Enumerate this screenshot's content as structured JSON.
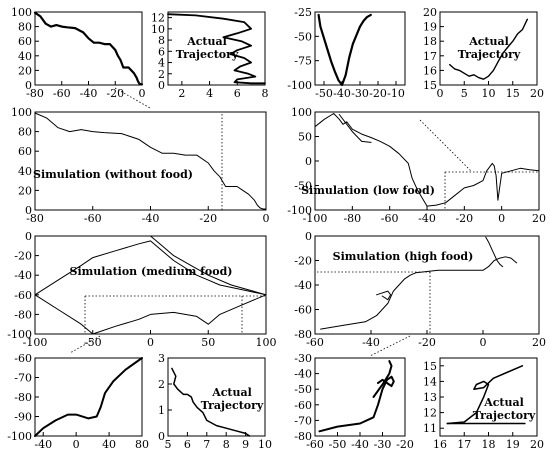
{
  "chart_data": [
    {
      "id": "p1",
      "type": "line",
      "xlim": [
        -80,
        0
      ],
      "ylim": [
        0,
        100
      ],
      "xticks": [
        -80,
        -60,
        -40,
        -20,
        0
      ],
      "yticks": [
        0,
        20,
        40,
        60,
        80,
        100
      ],
      "series": [
        {
          "x": [
            -80,
            -76,
            -72,
            -68,
            -64,
            -60,
            -56,
            -50,
            -44,
            -40,
            -36,
            -32,
            -28,
            -24,
            -20,
            -18,
            -16,
            -14,
            -10,
            -8,
            -6,
            -4,
            -3,
            -2,
            -1,
            0
          ],
          "y": [
            99,
            94,
            84,
            80,
            82,
            80,
            79,
            78,
            72,
            64,
            58,
            58,
            56,
            56,
            48,
            40,
            34,
            24,
            24,
            20,
            16,
            10,
            5,
            2,
            1,
            1
          ]
        }
      ]
    },
    {
      "id": "p2",
      "type": "line",
      "xlim": [
        1,
        8
      ],
      "ylim": [
        0,
        13
      ],
      "xticks": [
        2,
        4,
        6,
        8
      ],
      "yticks": [
        0,
        2,
        4,
        6,
        8,
        10,
        12
      ],
      "series": [
        {
          "x": [
            1.0,
            3.0,
            5.0,
            6.5,
            7.0,
            6.0,
            5.0,
            6.3,
            7.0,
            6.0,
            5.5,
            6.5,
            7.0,
            6.2,
            5.8,
            6.8,
            7.3,
            6.0,
            5.8,
            7.0,
            8.0
          ],
          "y": [
            12.6,
            12.4,
            11.8,
            11.2,
            10.0,
            9.2,
            8.5,
            7.8,
            7.0,
            6.2,
            5.5,
            4.8,
            4.0,
            3.3,
            2.6,
            2.0,
            1.5,
            1.0,
            0.5,
            0.3,
            0.3
          ]
        }
      ]
    },
    {
      "id": "p3",
      "type": "line",
      "xlim": [
        -55,
        -5
      ],
      "ylim": [
        -100,
        -25
      ],
      "xticks": [
        -50,
        -40,
        -30,
        -20,
        -10
      ],
      "yticks": [
        -100,
        -75,
        -50,
        -25
      ],
      "series": [
        {
          "x": [
            -53,
            -52,
            -50,
            -48,
            -46,
            -44,
            -42,
            -40,
            -38,
            -36,
            -34,
            -30,
            -28,
            -26,
            -24
          ],
          "y": [
            -28,
            -40,
            -52,
            -64,
            -76,
            -86,
            -95,
            -100,
            -90,
            -72,
            -58,
            -40,
            -34,
            -30,
            -28
          ]
        }
      ]
    },
    {
      "id": "p4",
      "type": "line",
      "xlim": [
        0,
        20
      ],
      "ylim": [
        15,
        20
      ],
      "xticks": [
        0,
        5,
        10,
        15,
        20
      ],
      "yticks": [
        15,
        16,
        17,
        18,
        19,
        20
      ],
      "series": [
        {
          "x": [
            2,
            3,
            4,
            5,
            6,
            7,
            8,
            9,
            10,
            11,
            12,
            13,
            14,
            15,
            16,
            17,
            18
          ],
          "y": [
            16.4,
            16.1,
            16.0,
            15.8,
            15.6,
            15.7,
            15.5,
            15.4,
            15.6,
            16.0,
            16.6,
            17.2,
            17.6,
            18.0,
            18.5,
            18.8,
            19.5
          ]
        }
      ]
    },
    {
      "id": "p5",
      "type": "line",
      "xlim": [
        -80,
        0
      ],
      "ylim": [
        0,
        100
      ],
      "xticks": [
        -80,
        -60,
        -40,
        -20,
        0
      ],
      "yticks": [
        0,
        20,
        40,
        60,
        80,
        100
      ],
      "series": [
        {
          "x": [
            -80,
            -76,
            -72,
            -68,
            -64,
            -60,
            -56,
            -50,
            -44,
            -40,
            -36,
            -32,
            -28,
            -24,
            -20,
            -18,
            -16,
            -14,
            -10,
            -8,
            -6,
            -4,
            -3,
            -2,
            -1,
            0
          ],
          "y": [
            99,
            94,
            84,
            80,
            82,
            80,
            79,
            78,
            72,
            64,
            58,
            58,
            56,
            56,
            48,
            40,
            34,
            24,
            24,
            20,
            16,
            10,
            5,
            2,
            1,
            1
          ]
        }
      ]
    },
    {
      "id": "p6",
      "type": "line",
      "xlim": [
        -100,
        20
      ],
      "ylim": [
        -100,
        100
      ],
      "xticks": [
        -100,
        -80,
        -60,
        -40,
        -20,
        0,
        20
      ],
      "yticks": [
        -100,
        -50,
        0,
        50,
        100
      ],
      "series": [
        {
          "x": [
            -100,
            -95,
            -90,
            -87,
            -85,
            -83,
            -80,
            -75,
            -70,
            -65,
            -60,
            -55,
            -50,
            -48,
            -45,
            -40,
            -35,
            -30,
            -25,
            -20,
            -15,
            -10,
            -8,
            -5,
            -4,
            -3,
            -2,
            0,
            5,
            10,
            15,
            20
          ],
          "y": [
            70,
            85,
            97,
            85,
            75,
            80,
            65,
            55,
            48,
            40,
            30,
            15,
            -5,
            -35,
            -60,
            -92,
            -90,
            -85,
            -70,
            -55,
            -50,
            -40,
            -20,
            -5,
            -10,
            -30,
            -80,
            -25,
            -20,
            -15,
            -18,
            -20
          ]
        },
        {
          "x": [
            -87,
            -80,
            -75,
            -70
          ],
          "y": [
            95,
            60,
            40,
            38
          ]
        }
      ]
    },
    {
      "id": "p7",
      "type": "line",
      "xlim": [
        -100,
        100
      ],
      "ylim": [
        -100,
        0
      ],
      "xticks": [
        -100,
        -50,
        0,
        50,
        100
      ],
      "yticks": [
        -100,
        -80,
        -60,
        -40,
        -20,
        0
      ],
      "series": [
        {
          "x": [
            -100,
            -80,
            -60,
            -50,
            -30,
            -10,
            0,
            20,
            40,
            50,
            60,
            80,
            100
          ],
          "y": [
            -60,
            -45,
            -30,
            -22,
            -15,
            -8,
            -5,
            -25,
            -40,
            -45,
            -50,
            -55,
            -60
          ]
        },
        {
          "x": [
            -100,
            -80,
            -60,
            -50,
            -30,
            -10,
            0,
            20,
            40,
            50,
            60,
            80,
            100
          ],
          "y": [
            -60,
            -75,
            -90,
            -100,
            -92,
            -85,
            -80,
            -78,
            -82,
            -90,
            -80,
            -70,
            -60
          ]
        },
        {
          "x": [
            0,
            10,
            20,
            35,
            50,
            70,
            100
          ],
          "y": [
            0,
            -10,
            -20,
            -30,
            -40,
            -50,
            -60
          ]
        }
      ]
    },
    {
      "id": "p8",
      "type": "line",
      "xlim": [
        -60,
        20
      ],
      "ylim": [
        -80,
        0
      ],
      "xticks": [
        -60,
        -40,
        -20,
        0,
        20
      ],
      "yticks": [
        -80,
        -60,
        -40,
        -20,
        0
      ],
      "series": [
        {
          "x": [
            -58,
            -50,
            -42,
            -38,
            -36,
            -34,
            -33,
            -32,
            -30,
            -28,
            -26,
            -24,
            -20,
            -16,
            -12,
            -8,
            -4,
            0,
            2,
            4,
            6,
            8,
            10,
            12
          ],
          "y": [
            -76,
            -73,
            -70,
            -65,
            -60,
            -55,
            -50,
            -45,
            -40,
            -35,
            -32,
            -30,
            -29,
            -28,
            -28,
            -28,
            -28,
            -28,
            -25,
            -20,
            -18,
            -17,
            -18,
            -22
          ]
        },
        {
          "x": [
            -38,
            -34,
            -33,
            -34,
            -36
          ],
          "y": [
            -48,
            -45,
            -48,
            -52,
            -49
          ]
        },
        {
          "x": [
            1,
            2,
            3,
            4,
            5,
            6,
            7
          ],
          "y": [
            -1,
            -5,
            -10,
            -15,
            -20,
            -23,
            -25
          ]
        }
      ]
    },
    {
      "id": "p9",
      "type": "line",
      "xlim": [
        -50,
        80
      ],
      "ylim": [
        -100,
        -60
      ],
      "xticks": [
        -40,
        0,
        40,
        80
      ],
      "yticks": [
        -100,
        -90,
        -80,
        -70,
        -60
      ],
      "series": [
        {
          "x": [
            -50,
            -40,
            -25,
            -10,
            0,
            15,
            25,
            30,
            35,
            45,
            60,
            80
          ],
          "y": [
            -100,
            -96,
            -92,
            -89,
            -89,
            -91,
            -90,
            -85,
            -78,
            -72,
            -66,
            -60
          ]
        }
      ]
    },
    {
      "id": "p10",
      "type": "line",
      "xlim": [
        5,
        10
      ],
      "ylim": [
        0,
        3
      ],
      "xticks": [
        5,
        6,
        7,
        8,
        9,
        10
      ],
      "yticks": [
        0,
        1,
        2,
        3
      ],
      "series": [
        {
          "x": [
            5.2,
            5.4,
            5.3,
            5.5,
            5.8,
            6.0,
            6.2,
            6.3,
            6.5,
            6.8,
            7.0,
            7.5,
            8.0,
            8.5,
            9.0,
            9.2
          ],
          "y": [
            2.6,
            2.3,
            2.0,
            1.8,
            1.6,
            1.6,
            1.5,
            1.3,
            1.1,
            0.9,
            0.6,
            0.4,
            0.3,
            0.2,
            0.1,
            0.0
          ]
        }
      ]
    },
    {
      "id": "p11",
      "type": "line",
      "xlim": [
        -60,
        -20
      ],
      "ylim": [
        -80,
        -30
      ],
      "xticks": [
        -60,
        -50,
        -40,
        -30,
        -20
      ],
      "yticks": [
        -80,
        -70,
        -60,
        -50,
        -40,
        -30
      ],
      "series": [
        {
          "x": [
            -58,
            -50,
            -40,
            -34,
            -32,
            -30,
            -28,
            -26,
            -25,
            -26,
            -28,
            -30,
            -32
          ],
          "y": [
            -77,
            -74,
            -72,
            -68,
            -60,
            -50,
            -44,
            -42,
            -45,
            -48,
            -46,
            -44,
            -46
          ]
        },
        {
          "x": [
            -34,
            -30,
            -27,
            -26,
            -27
          ],
          "y": [
            -55,
            -47,
            -40,
            -35,
            -32
          ]
        }
      ]
    },
    {
      "id": "p12",
      "type": "line",
      "xlim": [
        16,
        20
      ],
      "ylim": [
        10.5,
        15.5
      ],
      "xticks": [
        16,
        17,
        18,
        19,
        20
      ],
      "yticks": [
        11,
        12,
        13,
        14,
        15
      ],
      "series": [
        {
          "x": [
            16.3,
            17.0,
            17.5,
            17.8,
            18.0,
            17.8,
            17.5,
            17.4,
            17.8,
            18.2,
            18.8,
            19.4
          ],
          "y": [
            11.3,
            11.4,
            12.0,
            13.0,
            13.8,
            14.0,
            13.8,
            13.5,
            13.6,
            14.2,
            14.6,
            15.0
          ]
        },
        {
          "x": [
            16.3,
            17,
            18,
            19,
            19.5
          ],
          "y": [
            11.3,
            11.3,
            11.3,
            11.3,
            11.3
          ]
        }
      ]
    }
  ],
  "labels": {
    "p2": "Actual Trajectory",
    "p4": "Actual Trajectory",
    "p5": "Simulation (without food)",
    "p6": "Simulation (low food)",
    "p7": "Simulation (medium food)",
    "p8": "Simulation (high food)",
    "p10": "Actual Trajectory",
    "p12": "Actual Trajectory"
  }
}
